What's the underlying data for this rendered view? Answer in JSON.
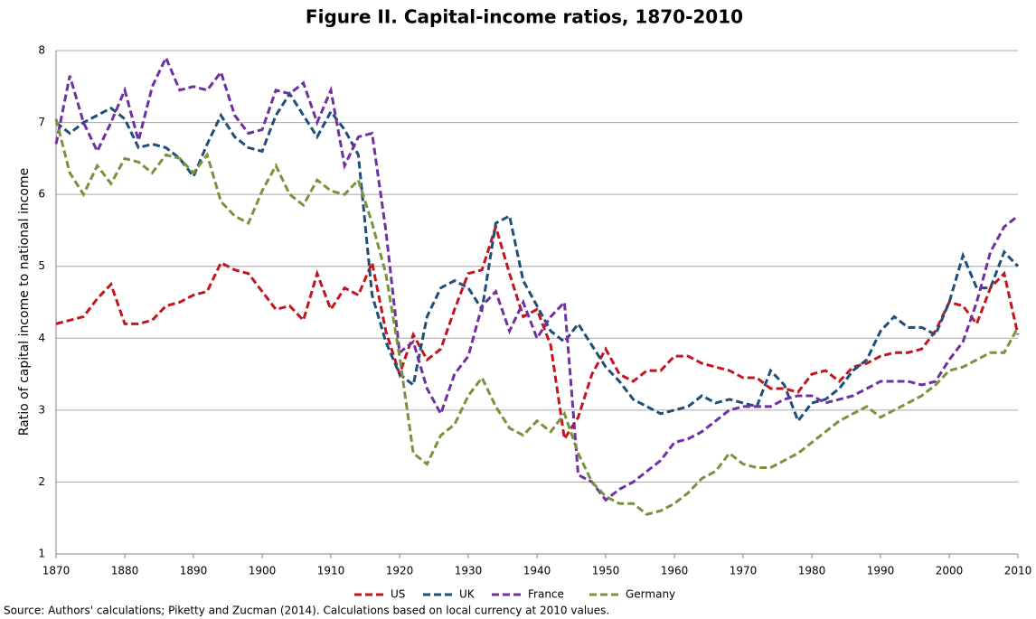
{
  "chart_data": {
    "type": "line",
    "title": "Figure II. Capital-income ratios, 1870-2010",
    "y_label": "Ratio of capital income to national income",
    "source": "Source:  Authors' calculations;  Piketty and Zucman (2014). Calculations based on local currency at 2010 values.",
    "x": [
      1870,
      1872,
      1874,
      1876,
      1878,
      1880,
      1882,
      1884,
      1886,
      1888,
      1890,
      1892,
      1894,
      1896,
      1898,
      1900,
      1902,
      1904,
      1906,
      1908,
      1910,
      1912,
      1914,
      1916,
      1918,
      1920,
      1922,
      1924,
      1926,
      1928,
      1930,
      1932,
      1934,
      1936,
      1938,
      1940,
      1942,
      1944,
      1946,
      1948,
      1950,
      1952,
      1954,
      1956,
      1958,
      1960,
      1962,
      1964,
      1966,
      1968,
      1970,
      1972,
      1974,
      1976,
      1978,
      1980,
      1982,
      1984,
      1986,
      1988,
      1990,
      1992,
      1994,
      1996,
      1998,
      2000,
      2002,
      2004,
      2006,
      2008,
      2010
    ],
    "xlim": [
      1870,
      2010
    ],
    "xticks": [
      1870,
      1880,
      1890,
      1900,
      1910,
      1920,
      1930,
      1940,
      1950,
      1960,
      1970,
      1980,
      1990,
      2000,
      2010
    ],
    "ylim": [
      1,
      8
    ],
    "yticks": [
      1,
      2,
      3,
      4,
      5,
      6,
      7,
      8
    ],
    "grid": true,
    "legend": "bottom",
    "series": [
      {
        "name": "US",
        "color": "#c0171d",
        "values": [
          4.2,
          4.25,
          4.3,
          4.55,
          4.75,
          4.2,
          4.2,
          4.25,
          4.45,
          4.5,
          4.6,
          4.65,
          5.05,
          4.95,
          4.9,
          4.65,
          4.4,
          4.45,
          4.25,
          4.9,
          4.4,
          4.7,
          4.6,
          5.05,
          4.1,
          3.5,
          4.05,
          3.7,
          3.85,
          4.4,
          4.9,
          4.95,
          5.55,
          4.9,
          4.3,
          4.4,
          3.9,
          2.6,
          2.9,
          3.5,
          3.85,
          3.5,
          3.4,
          3.55,
          3.55,
          3.75,
          3.75,
          3.65,
          3.6,
          3.55,
          3.45,
          3.45,
          3.3,
          3.3,
          3.25,
          3.5,
          3.55,
          3.4,
          3.6,
          3.65,
          3.75,
          3.8,
          3.8,
          3.85,
          4.1,
          4.5,
          4.45,
          4.2,
          4.7,
          4.9,
          4.05
        ]
      },
      {
        "name": "UK",
        "color": "#1f4e79",
        "values": [
          7.0,
          6.85,
          7.0,
          7.1,
          7.2,
          7.05,
          6.65,
          6.7,
          6.65,
          6.5,
          6.25,
          6.7,
          7.1,
          6.8,
          6.65,
          6.6,
          7.1,
          7.4,
          7.1,
          6.8,
          7.15,
          6.9,
          6.55,
          4.6,
          3.95,
          3.5,
          3.35,
          4.3,
          4.7,
          4.8,
          4.7,
          4.4,
          5.6,
          5.7,
          4.8,
          4.45,
          4.1,
          3.95,
          4.2,
          3.9,
          3.6,
          3.4,
          3.15,
          3.05,
          2.95,
          3.0,
          3.05,
          3.2,
          3.1,
          3.15,
          3.1,
          3.05,
          3.55,
          3.35,
          2.85,
          3.1,
          3.15,
          3.3,
          3.55,
          3.7,
          4.1,
          4.3,
          4.15,
          4.15,
          4.05,
          4.5,
          5.15,
          4.7,
          4.7,
          5.2,
          5.0
        ]
      },
      {
        "name": "France",
        "color": "#7030a0",
        "values": [
          6.7,
          7.65,
          7.0,
          6.6,
          7.0,
          7.45,
          6.75,
          7.5,
          7.9,
          7.45,
          7.5,
          7.45,
          7.7,
          7.1,
          6.85,
          6.9,
          7.45,
          7.4,
          7.55,
          7.0,
          7.45,
          6.4,
          6.8,
          6.85,
          5.5,
          3.8,
          3.95,
          3.3,
          2.95,
          3.5,
          3.75,
          4.45,
          4.65,
          4.1,
          4.5,
          4.0,
          4.3,
          4.5,
          2.1,
          2.0,
          1.75,
          1.9,
          2.0,
          2.15,
          2.3,
          2.55,
          2.6,
          2.7,
          2.85,
          3.0,
          3.05,
          3.05,
          3.05,
          3.15,
          3.2,
          3.2,
          3.1,
          3.15,
          3.2,
          3.3,
          3.4,
          3.4,
          3.4,
          3.35,
          3.4,
          3.7,
          3.95,
          4.5,
          5.2,
          5.55,
          5.7
        ]
      },
      {
        "name": "Germany",
        "color": "#77933c",
        "values": [
          7.05,
          6.3,
          6.0,
          6.4,
          6.15,
          6.5,
          6.45,
          6.3,
          6.55,
          6.5,
          6.3,
          6.55,
          5.9,
          5.7,
          5.6,
          6.05,
          6.4,
          6.0,
          5.85,
          6.2,
          6.05,
          6.0,
          6.2,
          5.6,
          4.9,
          3.75,
          2.4,
          2.25,
          2.65,
          2.8,
          3.2,
          3.45,
          3.05,
          2.75,
          2.65,
          2.85,
          2.7,
          2.95,
          2.4,
          2.0,
          1.8,
          1.7,
          1.7,
          1.55,
          1.6,
          1.7,
          1.85,
          2.05,
          2.15,
          2.4,
          2.25,
          2.2,
          2.2,
          2.3,
          2.4,
          2.55,
          2.7,
          2.85,
          2.95,
          3.05,
          2.9,
          3.0,
          3.1,
          3.2,
          3.35,
          3.55,
          3.6,
          3.7,
          3.8,
          3.8,
          4.15
        ]
      }
    ]
  }
}
